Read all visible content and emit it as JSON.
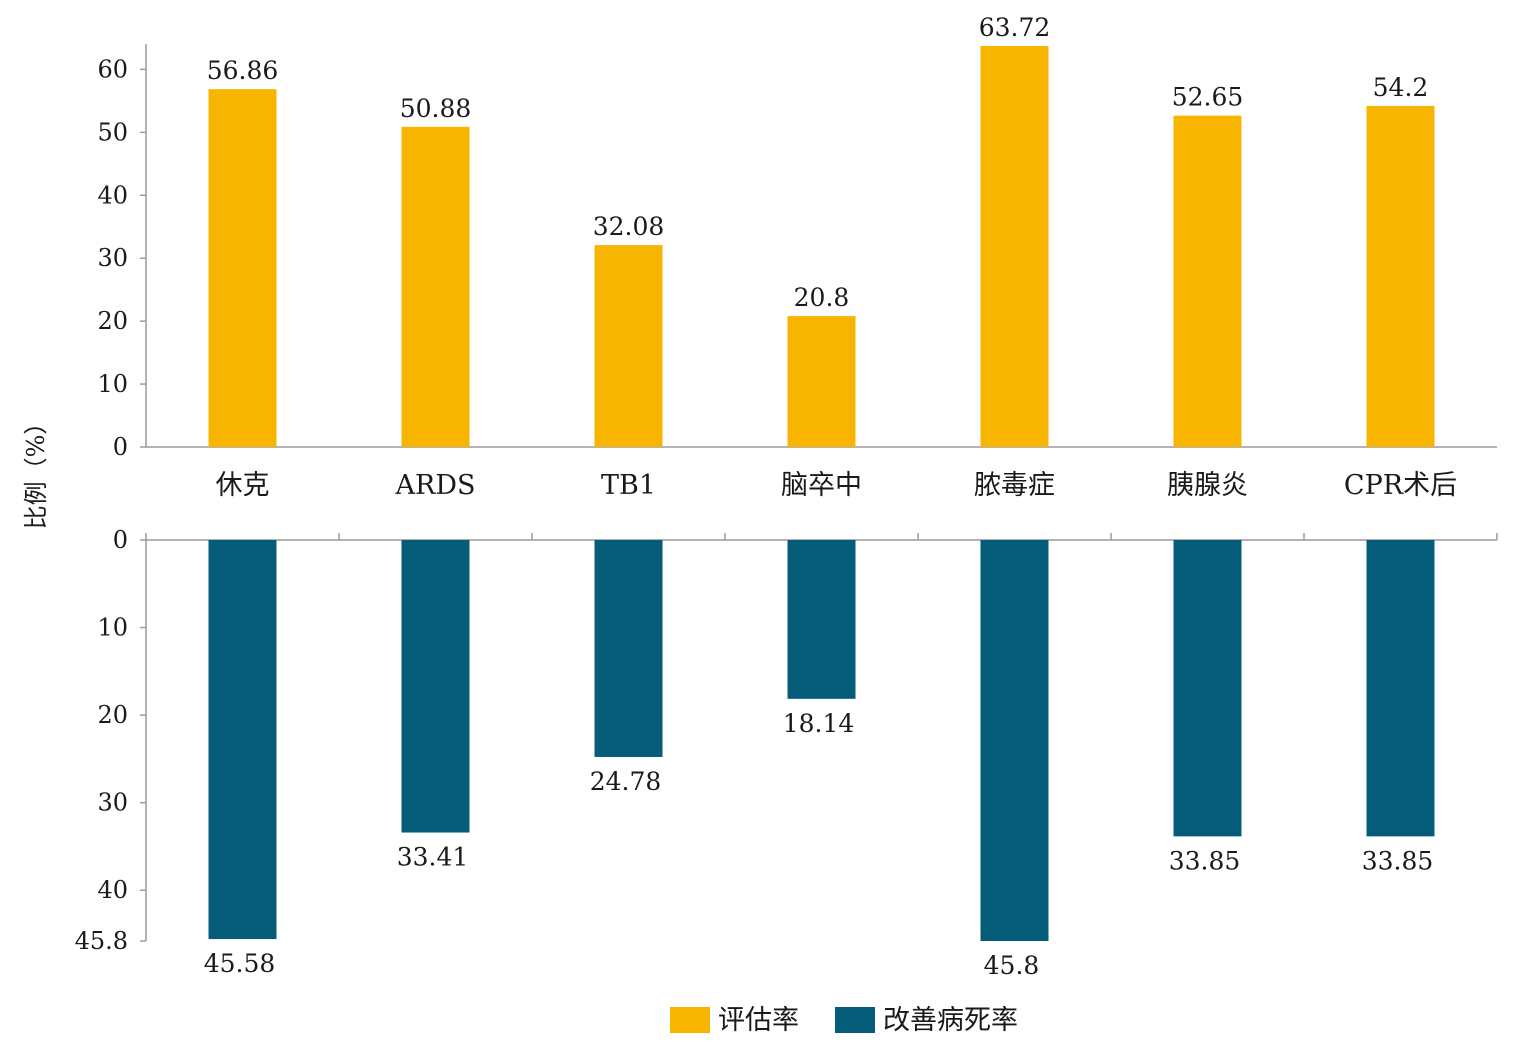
{
  "chart_data": {
    "type": "bar",
    "ylabel": "比例（%）",
    "categories": [
      "休克",
      "ARDS",
      "TB1",
      "脑卒中",
      "脓毒症",
      "胰腺炎",
      "CPR术后"
    ],
    "series": [
      {
        "name": "评估率",
        "color": "#F7B500",
        "values": [
          56.86,
          50.88,
          32.08,
          20.8,
          63.72,
          52.65,
          54.2
        ],
        "labels": [
          "56.86",
          "50.88",
          "32.08",
          "20.8",
          "63.72",
          "52.65",
          "54.2"
        ]
      },
      {
        "name": "改善病死率",
        "color": "#055C78",
        "values": [
          45.58,
          33.41,
          24.78,
          18.14,
          45.8,
          33.85,
          33.85
        ],
        "labels": [
          "45.58",
          "33.41",
          "24.78",
          "18.14",
          "45.8",
          "33.85",
          "33.85"
        ]
      }
    ],
    "top_axis": {
      "ylim": [
        0,
        63.72
      ],
      "ticks": [
        "0",
        "10",
        "20",
        "30",
        "40",
        "50",
        "60"
      ]
    },
    "bottom_axis": {
      "ylim": [
        0,
        45.8
      ],
      "inverted": true,
      "ticks": [
        "0",
        "10",
        "20",
        "30",
        "40",
        "45.8"
      ]
    },
    "grid": false,
    "legend_position": "bottom-center"
  }
}
